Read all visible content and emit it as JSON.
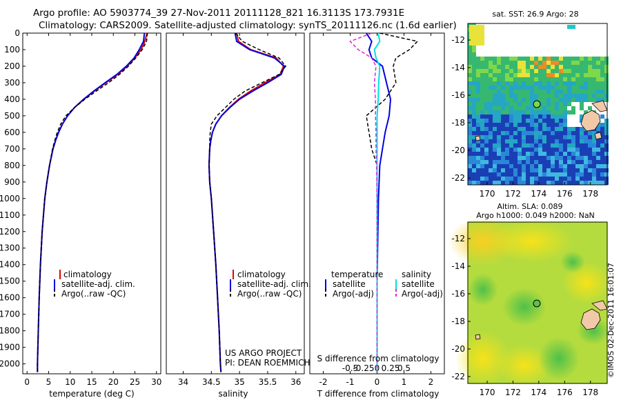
{
  "header": {
    "line1": "Argo profile: AO 5903774_39 27-Nov-2011 20111128_821 16.3113S 173.7931E",
    "line2": "Climatology: CARS2009. Satellite-adjusted climatology: synTS_20111126.nc (1.6d earlier)"
  },
  "credit": {
    "line1": "US ARGO PROJECT",
    "line2": "PI: DEAN ROEMMICH"
  },
  "stamp": "©IMOS 02-Dec-2011 16:01:07",
  "colors": {
    "clim": "#e00000",
    "sat": "#0000e0",
    "argo": "#000000",
    "sal_sat": "#00e0e0",
    "sal_argo": "#e020e0"
  },
  "chart_data": [
    {
      "id": "temperature",
      "type": "line",
      "xlabel": "temperature (deg C)",
      "ylabel": "",
      "xlim": [
        -1,
        31
      ],
      "ylim": [
        2060,
        0
      ],
      "xticks": [
        0,
        5,
        10,
        15,
        20,
        25,
        30
      ],
      "yticks": [
        0,
        100,
        200,
        300,
        400,
        500,
        600,
        700,
        800,
        900,
        1000,
        1100,
        1200,
        1300,
        1400,
        1500,
        1600,
        1700,
        1800,
        1900,
        2000
      ],
      "legend": [
        "climatology",
        "satellite-adj. clim.",
        "Argo(..raw -QC)"
      ],
      "depth": [
        0,
        50,
        100,
        150,
        200,
        250,
        300,
        350,
        400,
        450,
        500,
        550,
        600,
        650,
        700,
        800,
        900,
        1000,
        1200,
        1400,
        1600,
        1800,
        2000,
        2050
      ],
      "series": [
        {
          "name": "climatology",
          "values": [
            27.8,
            27.3,
            26.4,
            25.0,
            23.2,
            21.0,
            18.3,
            15.6,
            13.2,
            11.0,
            9.4,
            8.2,
            7.3,
            6.6,
            6.0,
            5.2,
            4.6,
            4.1,
            3.5,
            3.1,
            2.8,
            2.6,
            2.4,
            2.4
          ]
        },
        {
          "name": "satellite",
          "values": [
            27.2,
            27.0,
            26.0,
            24.8,
            23.0,
            20.8,
            18.1,
            15.5,
            13.1,
            11.0,
            9.4,
            8.2,
            7.3,
            6.6,
            6.0,
            5.2,
            4.6,
            4.1,
            3.5,
            3.1,
            2.8,
            2.6,
            2.4,
            2.4
          ]
        },
        {
          "name": "argo",
          "values": [
            27.9,
            27.7,
            26.7,
            25.2,
            23.5,
            21.4,
            18.9,
            16.1,
            13.4,
            11.0,
            9.0,
            7.8,
            7.0,
            6.4,
            5.9,
            5.2,
            4.6,
            4.1,
            3.5,
            3.1,
            2.8,
            2.6,
            2.4,
            2.4
          ]
        }
      ]
    },
    {
      "id": "salinity",
      "type": "line",
      "xlabel": "salinity",
      "xlim": [
        33.7,
        36.15
      ],
      "ylim": [
        2060,
        0
      ],
      "xticks": [
        34,
        34.5,
        35,
        35.5,
        36
      ],
      "legend": [
        "climatology",
        "satellite-adj. clim.",
        "Argo(..raw -QC)"
      ],
      "depth": [
        0,
        50,
        100,
        150,
        200,
        250,
        300,
        350,
        400,
        450,
        500,
        550,
        600,
        650,
        700,
        800,
        900,
        1000,
        1200,
        1400,
        1600,
        1800,
        2000,
        2050
      ],
      "series": [
        {
          "name": "climatology",
          "values": [
            34.95,
            34.98,
            35.2,
            35.65,
            35.78,
            35.72,
            35.45,
            35.2,
            34.98,
            34.82,
            34.68,
            34.58,
            34.52,
            34.49,
            34.47,
            34.46,
            34.47,
            34.5,
            34.54,
            34.58,
            34.61,
            34.64,
            34.66,
            34.67
          ]
        },
        {
          "name": "satellite",
          "values": [
            34.92,
            34.95,
            35.18,
            35.62,
            35.8,
            35.74,
            35.5,
            35.24,
            35.0,
            34.83,
            34.68,
            34.58,
            34.52,
            34.49,
            34.47,
            34.46,
            34.47,
            34.5,
            34.54,
            34.58,
            34.61,
            34.64,
            34.66,
            34.67
          ]
        },
        {
          "name": "argo",
          "values": [
            34.93,
            35.05,
            35.35,
            35.7,
            35.82,
            35.7,
            35.4,
            35.1,
            34.9,
            34.75,
            34.6,
            34.5,
            34.48,
            34.47,
            34.47,
            34.46,
            34.47,
            34.5,
            34.54,
            34.58,
            34.61,
            34.64,
            34.66,
            34.67
          ]
        }
      ]
    },
    {
      "id": "difference",
      "type": "line",
      "xlabel": "T difference from climatology",
      "xlabel_top": "S difference from climatology",
      "xlim": [
        -2.5,
        2.5
      ],
      "ylim": [
        2060,
        0
      ],
      "xticks": [
        -2,
        -1,
        0,
        1,
        2
      ],
      "s_ticks": [
        "-0.5",
        "-0.25",
        "0",
        "0.25",
        "0.5"
      ],
      "legend_temperature": {
        "title": "temperature",
        "items": [
          "satellite",
          "Argo(-adj)"
        ]
      },
      "legend_salinity": {
        "title": "salinity",
        "items": [
          "satellite",
          "Argo(-adj)"
        ]
      },
      "depth": [
        0,
        50,
        100,
        150,
        200,
        300,
        400,
        500,
        600,
        700,
        800,
        1000,
        1500,
        2000,
        2050
      ],
      "series": [
        {
          "name": "T satellite",
          "values": [
            -0.4,
            -0.2,
            -0.3,
            -0.2,
            0.2,
            0.35,
            0.5,
            0.45,
            0.3,
            0.2,
            0.1,
            0.05,
            0.0,
            0.0,
            0.0
          ]
        },
        {
          "name": "T Argo(-adj)",
          "values": [
            0.1,
            1.5,
            1.2,
            0.7,
            0.6,
            0.7,
            0.3,
            -0.4,
            -0.3,
            -0.2,
            0.0,
            0.0,
            0.0,
            0.0,
            0.0
          ]
        },
        {
          "name": "S satellite",
          "values": [
            0.02,
            0.05,
            -0.05,
            -0.02,
            0.05,
            0.03,
            0.02,
            0.0,
            0.0,
            0.0,
            0.0,
            0.0,
            0.0,
            0.0,
            0.0
          ]
        },
        {
          "name": "S Argo(-adj)",
          "values": [
            -0.1,
            -0.5,
            -0.35,
            -0.1,
            -0.02,
            -0.05,
            -0.03,
            -0.03,
            -0.02,
            -0.02,
            -0.01,
            0.0,
            0.0,
            0.0,
            0.0
          ]
        }
      ]
    }
  ],
  "maps": [
    {
      "title": "sat. SST: 26.9 Argo: 28",
      "yticks": [
        "-12",
        "-14",
        "-16",
        "-18",
        "-20",
        "-22"
      ],
      "xticks": [
        "170",
        "172",
        "174",
        "176",
        "178"
      ],
      "lonlim": [
        168.5,
        179.3
      ],
      "latlim": [
        -22.5,
        -10.8
      ],
      "marker": [
        173.79,
        -16.31
      ]
    },
    {
      "title1": "Altim. SLA: 0.089",
      "title2": "Argo h1000: 0.049 h2000: NaN",
      "yticks": [
        "-12",
        "-14",
        "-16",
        "-18",
        "-20",
        "-22"
      ],
      "xticks": [
        "170",
        "172",
        "174",
        "176",
        "178"
      ],
      "lonlim": [
        168.5,
        179.3
      ],
      "latlim": [
        -22.5,
        -10.8
      ],
      "marker": [
        173.79,
        -16.31
      ]
    }
  ]
}
